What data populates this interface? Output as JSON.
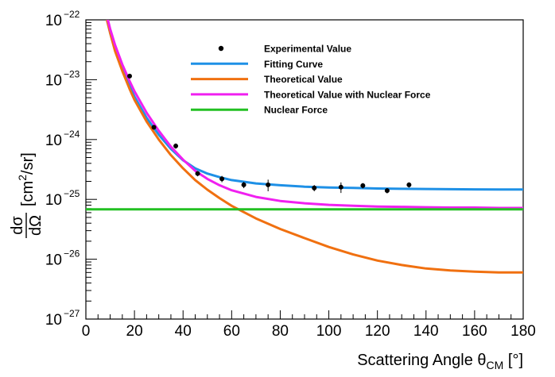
{
  "chart_data": {
    "type": "scatter",
    "title": "",
    "xlabel": {
      "main": "Scattering Angle θ",
      "sub": "CM",
      "unit": " [°]"
    },
    "ylabel": {
      "numerator": "dσ",
      "denominator": "dΩ",
      "unit_open": "[cm",
      "unit_exp": "2",
      "unit_close": "/sr]"
    },
    "xlim": [
      0,
      180
    ],
    "ylim": [
      1e-27,
      1e-22
    ],
    "yscale": "log",
    "grid": false,
    "legend_position": "top-right",
    "x_ticks": [
      "0",
      "20",
      "40",
      "60",
      "80",
      "100",
      "120",
      "140",
      "160",
      "180"
    ],
    "y_ticks": [
      {
        "base": "10",
        "exp": "−27"
      },
      {
        "base": "10",
        "exp": "−26"
      },
      {
        "base": "10",
        "exp": "−25"
      },
      {
        "base": "10",
        "exp": "−24"
      },
      {
        "base": "10",
        "exp": "−23"
      },
      {
        "base": "10",
        "exp": "−22"
      }
    ],
    "experimental": {
      "name": "Experimental Value",
      "color": "#000000",
      "x": [
        18,
        28,
        37,
        46,
        56,
        65,
        75,
        94,
        105,
        114,
        124,
        133
      ],
      "y": [
        1.15e-23,
        1.6e-24,
        7.8e-25,
        2.7e-25,
        2.2e-25,
        1.75e-25,
        1.75e-25,
        1.55e-25,
        1.6e-25,
        1.7e-25,
        1.4e-25,
        1.75e-25
      ],
      "yerr_rel": [
        0.05,
        0.08,
        0.1,
        0.1,
        0.12,
        0.12,
        0.22,
        0.12,
        0.2,
        0.1,
        0.1,
        0.1
      ]
    },
    "series": [
      {
        "name": "Fitting Curve",
        "color": "#1e90e6",
        "x": [
          8,
          10,
          12,
          15,
          18,
          20,
          25,
          30,
          35,
          40,
          45,
          50,
          55,
          60,
          70,
          80,
          90,
          100,
          110,
          120,
          130,
          140,
          150,
          160,
          170,
          180
        ],
        "y": [
          1.3e-22,
          6e-23,
          3.2e-23,
          1.5e-23,
          7.8e-24,
          5.2e-24,
          2.3e-24,
          1.2e-24,
          7e-25,
          4.5e-25,
          3.3e-25,
          2.7e-25,
          2.35e-25,
          2.1e-25,
          1.85e-25,
          1.72e-25,
          1.63e-25,
          1.58e-25,
          1.55e-25,
          1.52e-25,
          1.5e-25,
          1.49e-25,
          1.48e-25,
          1.47e-25,
          1.46e-25,
          1.46e-25
        ]
      },
      {
        "name": "Theoretical Value",
        "color": "#f07010",
        "x": [
          8,
          10,
          12,
          15,
          18,
          20,
          25,
          30,
          35,
          40,
          45,
          50,
          55,
          60,
          70,
          80,
          90,
          100,
          110,
          120,
          130,
          140,
          150,
          160,
          170,
          180
        ],
        "y": [
          1.3e-22,
          6e-23,
          3e-23,
          1.4e-23,
          7e-24,
          4.6e-24,
          2e-24,
          1e-24,
          5.5e-25,
          3.3e-25,
          2.1e-25,
          1.45e-25,
          1.05e-25,
          7.8e-26,
          4.8e-26,
          3.2e-26,
          2.25e-26,
          1.6e-26,
          1.2e-26,
          9.5e-27,
          8e-27,
          7e-27,
          6.5e-27,
          6.2e-27,
          6e-27,
          6e-27
        ]
      },
      {
        "name": "Theoretical Value with Nuclear Force",
        "color": "#f020f0",
        "x": [
          8,
          10,
          12,
          15,
          18,
          20,
          25,
          30,
          35,
          40,
          45,
          50,
          55,
          60,
          70,
          80,
          90,
          100,
          110,
          120,
          130,
          140,
          150,
          160,
          170,
          180
        ],
        "y": [
          1.5e-22,
          7e-23,
          3.8e-23,
          1.8e-23,
          9.5e-24,
          6.4e-24,
          2.8e-24,
          1.4e-24,
          7.6e-25,
          4.6e-25,
          3e-25,
          2.2e-25,
          1.72e-25,
          1.42e-25,
          1.1e-25,
          9.4e-26,
          8.6e-26,
          8.1e-26,
          7.8e-26,
          7.6e-26,
          7.5e-26,
          7.4e-26,
          7.3e-26,
          7.3e-26,
          7.2e-26,
          7.2e-26
        ]
      },
      {
        "name": "Nuclear Force",
        "color": "#22c022",
        "x": [
          0,
          180
        ],
        "y": [
          6.8e-26,
          6.8e-26
        ]
      }
    ],
    "legend": [
      {
        "label": "Experimental Value",
        "kind": "marker",
        "color": "#000000"
      },
      {
        "label": "Fitting Curve",
        "kind": "line",
        "color": "#1e90e6"
      },
      {
        "label": "Theoretical Value",
        "kind": "line",
        "color": "#f07010"
      },
      {
        "label": "Theoretical Value with Nuclear Force",
        "kind": "line",
        "color": "#f020f0"
      },
      {
        "label": "Nuclear Force",
        "kind": "line",
        "color": "#22c022"
      }
    ]
  }
}
